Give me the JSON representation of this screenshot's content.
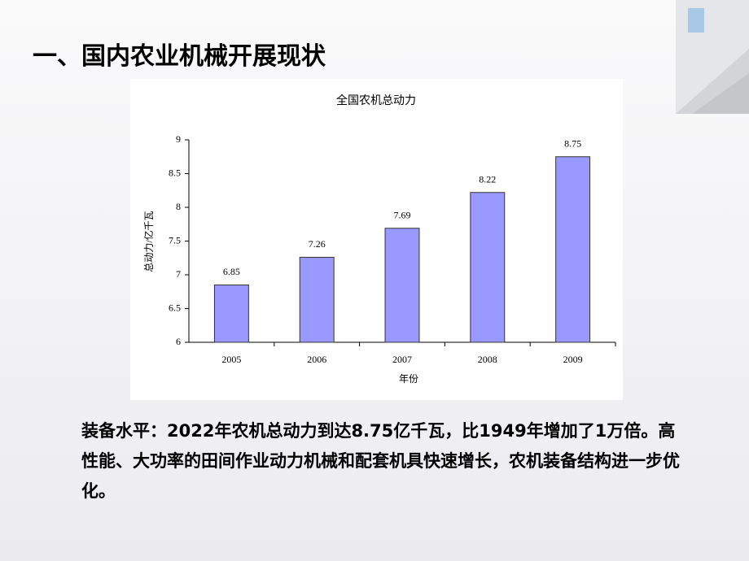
{
  "heading": "一、国内农业机械开展现状",
  "body": "装备水平：2022年农机总动力到达8.75亿千瓦，比1949年增加了1万倍。高性能、大功率的田间作业动力机械和配套机具快速增长，农机装备结构进一步优化。",
  "chart_data": {
    "type": "bar",
    "title": "全国农机总动力",
    "x_label": "年份",
    "y_label": "总动力/亿千瓦",
    "categories": [
      "2005",
      "2006",
      "2007",
      "2008",
      "2009"
    ],
    "values": [
      6.85,
      7.26,
      7.69,
      8.22,
      8.75
    ],
    "color": "#9999ff",
    "ylim": [
      6,
      9
    ],
    "yticks": [
      6,
      6.5,
      7,
      7.5,
      8,
      8.5,
      9
    ]
  }
}
